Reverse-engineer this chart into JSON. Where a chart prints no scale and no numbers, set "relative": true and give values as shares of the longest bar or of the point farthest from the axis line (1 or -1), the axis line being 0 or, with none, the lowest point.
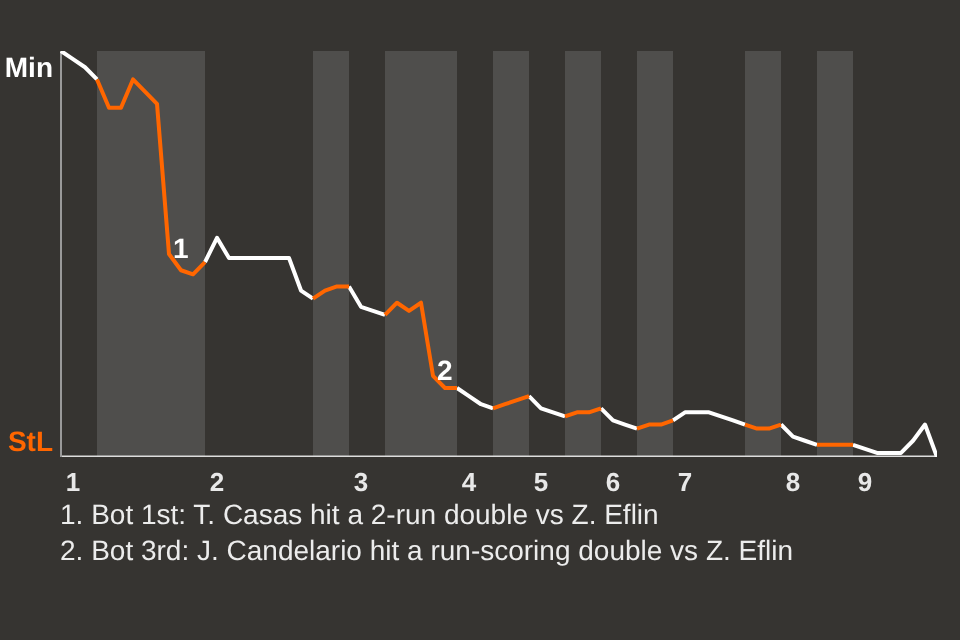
{
  "chart_data": {
    "type": "line",
    "relative": true,
    "categories": [
      null,
      "1",
      null,
      null,
      null,
      null,
      null,
      null,
      null,
      null,
      null,
      null,
      null,
      "2",
      null,
      null,
      null,
      null,
      null,
      null,
      null,
      null,
      null,
      null,
      null,
      "3",
      null,
      null,
      null,
      null,
      null,
      null,
      null,
      null,
      "4",
      null,
      null,
      null,
      null,
      null,
      "5",
      null,
      null,
      null,
      null,
      null,
      "6",
      null,
      null,
      null,
      null,
      null,
      "7",
      null,
      null,
      null,
      null,
      null,
      null,
      null,
      null,
      "8",
      null,
      null,
      null,
      null,
      null,
      "9",
      null,
      null,
      null,
      null,
      null,
      null
    ],
    "series": [
      {
        "name": "Min",
        "color": "#ffffff",
        "values": [
          1,
          0.98,
          0.96,
          0.93,
          null,
          null,
          null,
          null,
          null,
          null,
          null,
          null,
          0.48,
          0.54,
          0.49,
          0.49,
          0.49,
          0.49,
          0.49,
          0.49,
          0.41,
          0.39,
          null,
          null,
          0.42,
          0.37,
          0.36,
          0.35,
          null,
          null,
          null,
          null,
          null,
          0.17,
          0.15,
          0.13,
          0.12,
          null,
          null,
          0.15,
          0.12,
          0.11,
          0.1,
          null,
          null,
          0.12,
          0.09,
          0.08,
          0.07,
          null,
          null,
          0.09,
          0.11,
          0.11,
          0.11,
          0.1,
          0.09,
          0.08,
          null,
          null,
          0.08,
          0.05,
          0.04,
          0.03,
          null,
          null,
          0.03,
          0.02,
          0.01,
          0.01,
          0.01,
          0.04,
          0.08,
          0
        ]
      },
      {
        "name": "StL",
        "color": "#ff6600",
        "values": [
          null,
          null,
          null,
          0.93,
          0.86,
          0.86,
          0.93,
          0.9,
          0.87,
          0.5,
          0.46,
          0.45,
          0.48,
          null,
          null,
          null,
          null,
          null,
          null,
          null,
          null,
          0.39,
          0.41,
          0.42,
          0.42,
          null,
          null,
          0.35,
          0.38,
          0.36,
          0.38,
          0.2,
          0.17,
          0.17,
          null,
          null,
          0.12,
          0.13,
          0.14,
          0.15,
          null,
          null,
          0.1,
          0.11,
          0.11,
          0.12,
          null,
          null,
          0.07,
          0.08,
          0.08,
          0.09,
          null,
          null,
          null,
          null,
          null,
          0.08,
          0.07,
          0.07,
          0.08,
          null,
          null,
          0.03,
          0.03,
          0.03,
          0.03,
          null,
          null,
          null,
          null,
          null,
          null,
          null
        ]
      }
    ],
    "annotations": [
      {
        "text": "1",
        "y": 0.5
      },
      {
        "text": "2",
        "y": 0.2
      },
      "1. Bot 1st: T. Casas hit a 2-run double vs Z. Eflin",
      "2. Bot 3rd: J. Candelario hit a run-scoring double vs Z. Eflin"
    ]
  }
}
